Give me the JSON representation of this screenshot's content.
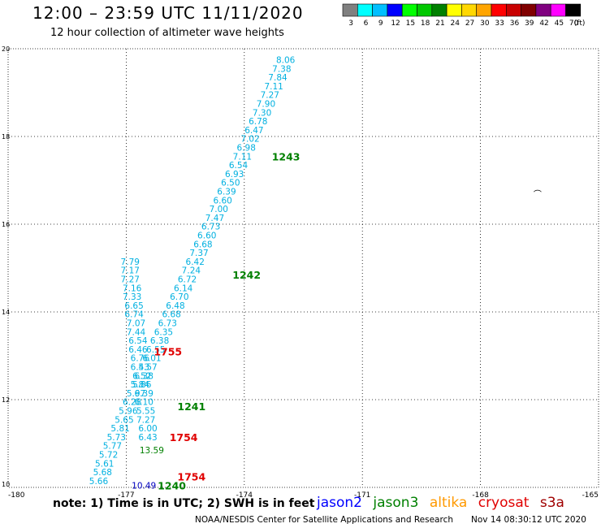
{
  "header": {
    "title": "12:00 – 23:59 UTC 11/11/2020",
    "subtitle": "12 hour collection of altimeter wave heights"
  },
  "legend": {
    "unit": "(ft)",
    "bins": [
      {
        "color": "#808080",
        "label": "3"
      },
      {
        "color": "#00ffff",
        "label": "6"
      },
      {
        "color": "#00bfff",
        "label": "9"
      },
      {
        "color": "#0000ff",
        "label": "12"
      },
      {
        "color": "#00ff00",
        "label": "15"
      },
      {
        "color": "#00c800",
        "label": "18"
      },
      {
        "color": "#008000",
        "label": "21"
      },
      {
        "color": "#ffff00",
        "label": "24"
      },
      {
        "color": "#ffd700",
        "label": "27"
      },
      {
        "color": "#ffa500",
        "label": "30"
      },
      {
        "color": "#ff0000",
        "label": "33"
      },
      {
        "color": "#c80000",
        "label": "36"
      },
      {
        "color": "#800000",
        "label": "39"
      },
      {
        "color": "#800080",
        "label": "42"
      },
      {
        "color": "#ff00ff",
        "label": "45"
      },
      {
        "color": "#000000",
        "label": "70"
      }
    ]
  },
  "map": {
    "lon_range": [
      -180,
      -165
    ],
    "lat_range": [
      10,
      20
    ],
    "lon_ticks": [
      "-180",
      "-177",
      "-174",
      "-171",
      "-168",
      "-165"
    ],
    "lat_ticks": [
      "10",
      "12",
      "14",
      "16",
      "18",
      "20"
    ],
    "island_symbol": "⌒",
    "point_color": "#00b0e0",
    "passes": [
      {
        "label": "1243",
        "color": "#008000",
        "lon": -173.3,
        "lat": 17.55
      },
      {
        "label": "1242",
        "color": "#008000",
        "lon": -174.3,
        "lat": 14.85
      },
      {
        "label": "1241",
        "color": "#008000",
        "lon": -175.7,
        "lat": 11.85
      },
      {
        "label": "1240",
        "color": "#008000",
        "lon": -176.2,
        "lat": 10.05
      },
      {
        "label": "1755",
        "color": "#e00000",
        "lon": -176.3,
        "lat": 13.1
      },
      {
        "label": "1754",
        "color": "#e00000",
        "lon": -175.9,
        "lat": 11.15
      },
      {
        "label": "1754",
        "color": "#e00000",
        "lon": -175.7,
        "lat": 10.25
      }
    ],
    "track_a": [
      {
        "lon": -172.95,
        "lat": 19.75,
        "v": "8.06"
      },
      {
        "lon": -173.05,
        "lat": 19.55,
        "v": "7.38"
      },
      {
        "lon": -173.15,
        "lat": 19.35,
        "v": "7.84"
      },
      {
        "lon": -173.25,
        "lat": 19.15,
        "v": "7.11"
      },
      {
        "lon": -173.35,
        "lat": 18.95,
        "v": "7.27"
      },
      {
        "lon": -173.45,
        "lat": 18.75,
        "v": "7.90"
      },
      {
        "lon": -173.55,
        "lat": 18.55,
        "v": "7.30"
      },
      {
        "lon": -173.65,
        "lat": 18.35,
        "v": "6.78"
      },
      {
        "lon": -173.75,
        "lat": 18.15,
        "v": "6.47"
      },
      {
        "lon": -173.85,
        "lat": 17.95,
        "v": "7.02"
      },
      {
        "lon": -173.95,
        "lat": 17.75,
        "v": "6.98"
      },
      {
        "lon": -174.05,
        "lat": 17.55,
        "v": "7.11"
      },
      {
        "lon": -174.15,
        "lat": 17.35,
        "v": "6.54"
      },
      {
        "lon": -174.25,
        "lat": 17.15,
        "v": "6.93"
      },
      {
        "lon": -174.35,
        "lat": 16.95,
        "v": "6.50"
      },
      {
        "lon": -174.45,
        "lat": 16.75,
        "v": "6.39"
      },
      {
        "lon": -174.55,
        "lat": 16.55,
        "v": "6.60"
      },
      {
        "lon": -174.65,
        "lat": 16.35,
        "v": "7.00"
      },
      {
        "lon": -174.75,
        "lat": 16.15,
        "v": "7.47"
      },
      {
        "lon": -174.85,
        "lat": 15.95,
        "v": "6.73"
      },
      {
        "lon": -174.95,
        "lat": 15.75,
        "v": "6.60"
      },
      {
        "lon": -175.05,
        "lat": 15.55,
        "v": "6.68"
      },
      {
        "lon": -175.15,
        "lat": 15.35,
        "v": "7.37"
      },
      {
        "lon": -175.25,
        "lat": 15.15,
        "v": "6.42"
      },
      {
        "lon": -175.35,
        "lat": 14.95,
        "v": "7.24"
      },
      {
        "lon": -175.45,
        "lat": 14.75,
        "v": "6.72"
      },
      {
        "lon": -175.55,
        "lat": 14.55,
        "v": "6.14"
      },
      {
        "lon": -175.65,
        "lat": 14.35,
        "v": "6.70"
      },
      {
        "lon": -175.75,
        "lat": 14.15,
        "v": "6.48"
      },
      {
        "lon": -175.85,
        "lat": 13.95,
        "v": "6.68"
      },
      {
        "lon": -175.95,
        "lat": 13.75,
        "v": "6.73"
      },
      {
        "lon": -176.05,
        "lat": 13.55,
        "v": "6.35"
      },
      {
        "lon": -176.15,
        "lat": 13.35,
        "v": "6.38"
      },
      {
        "lon": -176.25,
        "lat": 13.15,
        "v": "6.55"
      },
      {
        "lon": -176.35,
        "lat": 12.95,
        "v": "6.01"
      },
      {
        "lon": -176.45,
        "lat": 12.75,
        "v": "5.57"
      },
      {
        "lon": -176.55,
        "lat": 12.55,
        "v": "6.38"
      },
      {
        "lon": -176.65,
        "lat": 12.35,
        "v": "5.84"
      },
      {
        "lon": -176.75,
        "lat": 12.15,
        "v": "5.97"
      },
      {
        "lon": -176.85,
        "lat": 11.95,
        "v": "6.28"
      },
      {
        "lon": -176.95,
        "lat": 11.75,
        "v": "5.96"
      },
      {
        "lon": -177.05,
        "lat": 11.55,
        "v": "5.65"
      },
      {
        "lon": -177.15,
        "lat": 11.35,
        "v": "5.81"
      },
      {
        "lon": -177.25,
        "lat": 11.15,
        "v": "5.73"
      },
      {
        "lon": -177.35,
        "lat": 10.95,
        "v": "5.77"
      },
      {
        "lon": -177.45,
        "lat": 10.75,
        "v": "5.72"
      },
      {
        "lon": -177.55,
        "lat": 10.55,
        "v": "5.61"
      },
      {
        "lon": -177.6,
        "lat": 10.35,
        "v": "5.68"
      },
      {
        "lon": -177.7,
        "lat": 10.15,
        "v": "5.66"
      }
    ],
    "track_b": [
      {
        "lon": -176.9,
        "lat": 15.15,
        "v": "7.79"
      },
      {
        "lon": -176.9,
        "lat": 14.95,
        "v": "7.17"
      },
      {
        "lon": -176.9,
        "lat": 14.75,
        "v": "7.27"
      },
      {
        "lon": -176.85,
        "lat": 14.55,
        "v": "7.16"
      },
      {
        "lon": -176.85,
        "lat": 14.35,
        "v": "7.33"
      },
      {
        "lon": -176.8,
        "lat": 14.15,
        "v": "6.65"
      },
      {
        "lon": -176.8,
        "lat": 13.95,
        "v": "6.74"
      },
      {
        "lon": -176.75,
        "lat": 13.75,
        "v": "7.07"
      },
      {
        "lon": -176.75,
        "lat": 13.55,
        "v": "7.44"
      },
      {
        "lon": -176.7,
        "lat": 13.35,
        "v": "6.54"
      },
      {
        "lon": -176.7,
        "lat": 13.15,
        "v": "6.46"
      },
      {
        "lon": -176.65,
        "lat": 12.95,
        "v": "6.76"
      },
      {
        "lon": -176.65,
        "lat": 12.75,
        "v": "6.43"
      },
      {
        "lon": -176.6,
        "lat": 12.55,
        "v": "6.52"
      },
      {
        "lon": -176.6,
        "lat": 12.35,
        "v": "5.86"
      },
      {
        "lon": -176.55,
        "lat": 12.15,
        "v": "6.39"
      },
      {
        "lon": -176.55,
        "lat": 11.95,
        "v": "6.10"
      },
      {
        "lon": -176.5,
        "lat": 11.75,
        "v": "5.55"
      },
      {
        "lon": -176.5,
        "lat": 11.55,
        "v": "7.27"
      },
      {
        "lon": -176.45,
        "lat": 11.35,
        "v": "6.00"
      },
      {
        "lon": -176.45,
        "lat": 11.15,
        "v": "6.43"
      }
    ],
    "special_points": [
      {
        "lon": -176.35,
        "lat": 10.85,
        "v": "13.59",
        "color": "#008000"
      },
      {
        "lon": -176.55,
        "lat": 10.05,
        "v": "10.49",
        "color": "#0000c0"
      }
    ]
  },
  "notes": {
    "text": "note:  1) Time is in UTC;  2) SWH is in feet"
  },
  "satellites": [
    {
      "name": "jason2",
      "color": "#0000ff"
    },
    {
      "name": "jason3",
      "color": "#008000"
    },
    {
      "name": "altika",
      "color": "#ff9900"
    },
    {
      "name": "cryosat",
      "color": "#e00000"
    },
    {
      "name": "s3a",
      "color": "#a00000"
    }
  ],
  "footer": {
    "credit": "NOAA/NESDIS Center for Satellite Applications and Research",
    "timestamp": "Nov 14 08:30:12 UTC 2020"
  }
}
